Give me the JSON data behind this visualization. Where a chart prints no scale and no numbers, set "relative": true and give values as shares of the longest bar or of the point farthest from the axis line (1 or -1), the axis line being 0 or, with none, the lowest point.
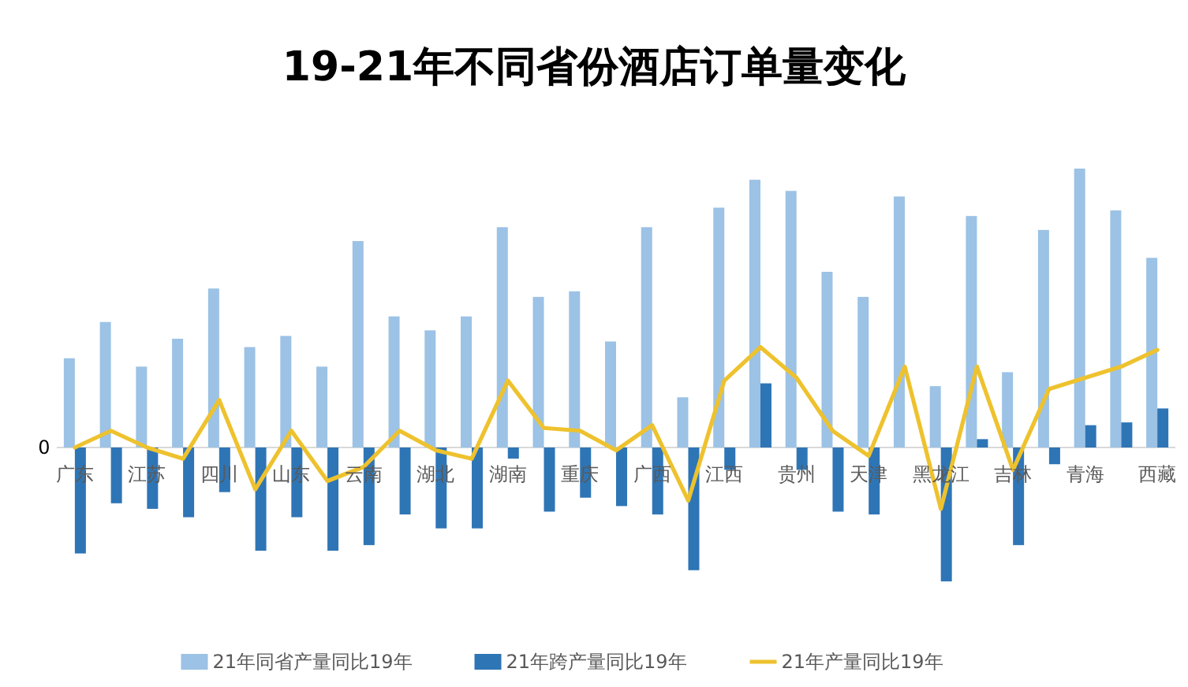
{
  "chart_data": {
    "type": "bar",
    "title": "19-21年不同省份酒店订单量变化",
    "relative": true,
    "legend": "bottom",
    "annotations": [
      "0"
    ],
    "categories": [
      "广东",
      null,
      "江苏",
      null,
      "四川",
      null,
      "山东",
      null,
      "云南",
      null,
      "湖北",
      null,
      "湖南",
      null,
      "重庆",
      null,
      "广西",
      null,
      "江西",
      null,
      "贵州",
      null,
      "天津",
      null,
      "黑龙江",
      null,
      "吉林",
      null,
      "青海",
      null,
      "西藏"
    ],
    "series": [
      {
        "name": "21年同省产量同比19年",
        "color": "#9cc2e5",
        "values": [
          0.32,
          0.45,
          0.29,
          0.39,
          0.57,
          0.36,
          0.4,
          0.29,
          0.74,
          0.47,
          0.42,
          0.47,
          0.79,
          0.54,
          0.56,
          0.38,
          0.79,
          0.18,
          0.86,
          0.96,
          0.92,
          0.63,
          0.54,
          0.9,
          0.22,
          0.83,
          0.27,
          0.78,
          1,
          0.85,
          0.68
        ]
      },
      {
        "name": "21年跨产量同比19年",
        "color": "#2e75b6",
        "values": [
          -0.38,
          -0.2,
          -0.22,
          -0.25,
          -0.16,
          -0.37,
          -0.25,
          -0.37,
          -0.35,
          -0.24,
          -0.29,
          -0.29,
          -0.04,
          -0.23,
          -0.18,
          -0.21,
          -0.24,
          -0.44,
          -0.08,
          0.23,
          -0.08,
          -0.23,
          -0.24,
          0,
          -0.48,
          0.03,
          -0.35,
          -0.06,
          0.08,
          0.09,
          0.14
        ]
      },
      {
        "name": "21年产量同比19年",
        "type": "line",
        "color": "#eec22e",
        "values": [
          0,
          0.06,
          0,
          -0.04,
          0.17,
          -0.15,
          0.06,
          -0.12,
          -0.07,
          0.06,
          -0.01,
          -0.04,
          0.24,
          0.07,
          0.06,
          -0.01,
          0.08,
          -0.19,
          0.24,
          0.36,
          0.25,
          0.06,
          -0.03,
          0.29,
          -0.22,
          0.29,
          -0.08,
          0.21,
          0.25,
          0.29,
          0.35
        ]
      }
    ]
  }
}
